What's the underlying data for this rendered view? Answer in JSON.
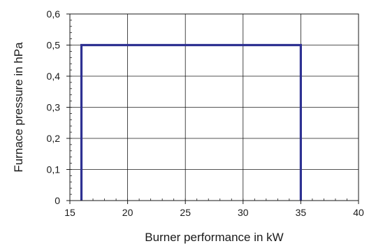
{
  "chart_data": {
    "type": "line",
    "title": "",
    "xlabel": "Burner performance in kW",
    "ylabel": "Furnace pressure in hPa",
    "xlim": [
      15,
      40
    ],
    "ylim": [
      0,
      0.6
    ],
    "x_ticks": [
      15,
      20,
      25,
      30,
      35,
      40
    ],
    "x_tick_labels": [
      "15",
      "20",
      "25",
      "30",
      "35",
      "40"
    ],
    "y_ticks": [
      0,
      0.1,
      0.2,
      0.3,
      0.4,
      0.5,
      0.6
    ],
    "y_tick_labels": [
      "0",
      "0,1",
      "0,2",
      "0,3",
      "0,4",
      "0,5",
      "0,6"
    ],
    "grid": true,
    "series": [
      {
        "color": "#2e3192",
        "x": [
          16,
          16,
          35,
          35
        ],
        "y": [
          0,
          0.5,
          0.5,
          0
        ]
      }
    ]
  }
}
